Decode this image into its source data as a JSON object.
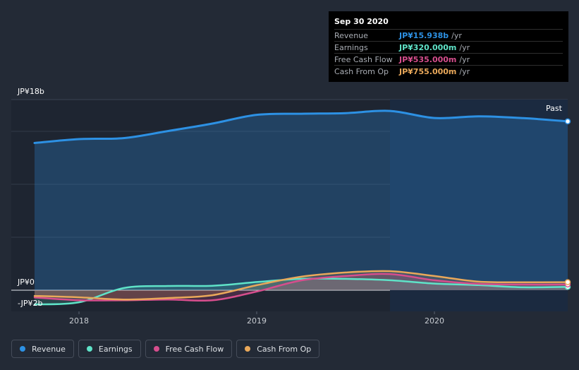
{
  "tooltip": {
    "date": "Sep 30 2020",
    "rows": [
      {
        "label": "Revenue",
        "value": "JP¥15.938b",
        "unit": "/yr",
        "color": "#2d91e4"
      },
      {
        "label": "Earnings",
        "value": "JP¥320.000m",
        "unit": "/yr",
        "color": "#5fe3c8"
      },
      {
        "label": "Free Cash Flow",
        "value": "JP¥535.000m",
        "unit": "/yr",
        "color": "#d64e8d"
      },
      {
        "label": "Cash From Op",
        "value": "JP¥755.000m",
        "unit": "/yr",
        "color": "#e9a85a"
      }
    ]
  },
  "y_axis": {
    "top_label": "JP¥18b",
    "zero_label": "JP¥0",
    "bottom_label": "-JP¥2b"
  },
  "past_label": "Past",
  "legend": [
    {
      "label": "Revenue",
      "color": "#2d91e4"
    },
    {
      "label": "Earnings",
      "color": "#5fe3c8"
    },
    {
      "label": "Free Cash Flow",
      "color": "#d64e8d"
    },
    {
      "label": "Cash From Op",
      "color": "#e9a85a"
    }
  ],
  "chart_data": {
    "type": "line",
    "title": "",
    "xlabel": "",
    "ylabel": "",
    "ylim": [
      -2,
      18
    ],
    "xlim": [
      2017.73,
      2020.75
    ],
    "y_unit": "JP¥ billions",
    "x_ticks": [
      {
        "value": 2018.0,
        "label": "2018"
      },
      {
        "value": 2019.0,
        "label": "2019"
      },
      {
        "value": 2020.0,
        "label": "2020"
      }
    ],
    "shaded_region_start": 2019.75,
    "series": [
      {
        "name": "Revenue",
        "color": "#2d91e4",
        "points": [
          [
            2017.75,
            13.9
          ],
          [
            2018.0,
            14.27
          ],
          [
            2018.25,
            14.36
          ],
          [
            2018.5,
            15.03
          ],
          [
            2018.75,
            15.73
          ],
          [
            2019.0,
            16.56
          ],
          [
            2019.25,
            16.66
          ],
          [
            2019.5,
            16.72
          ],
          [
            2019.75,
            16.93
          ],
          [
            2020.0,
            16.26
          ],
          [
            2020.25,
            16.42
          ],
          [
            2020.5,
            16.25
          ],
          [
            2020.75,
            15.94
          ]
        ]
      },
      {
        "name": "Earnings",
        "color": "#5fe3c8",
        "points": [
          [
            2017.75,
            -1.34
          ],
          [
            2018.0,
            -1.14
          ],
          [
            2018.25,
            0.2
          ],
          [
            2018.5,
            0.4
          ],
          [
            2018.75,
            0.42
          ],
          [
            2019.0,
            0.77
          ],
          [
            2019.25,
            1.07
          ],
          [
            2019.5,
            1.07
          ],
          [
            2019.75,
            0.94
          ],
          [
            2020.0,
            0.63
          ],
          [
            2020.25,
            0.48
          ],
          [
            2020.5,
            0.27
          ],
          [
            2020.75,
            0.32
          ]
        ]
      },
      {
        "name": "Free Cash Flow",
        "color": "#d64e8d",
        "points": [
          [
            2017.75,
            -0.68
          ],
          [
            2018.0,
            -0.95
          ],
          [
            2018.25,
            -0.95
          ],
          [
            2018.5,
            -0.88
          ],
          [
            2018.75,
            -0.95
          ],
          [
            2019.0,
            -0.13
          ],
          [
            2019.25,
            0.93
          ],
          [
            2019.5,
            1.34
          ],
          [
            2019.75,
            1.53
          ],
          [
            2020.0,
            0.94
          ],
          [
            2020.25,
            0.6
          ],
          [
            2020.5,
            0.54
          ],
          [
            2020.75,
            0.54
          ]
        ]
      },
      {
        "name": "Cash From Op",
        "color": "#e9a85a",
        "points": [
          [
            2017.75,
            -0.54
          ],
          [
            2018.0,
            -0.67
          ],
          [
            2018.25,
            -0.88
          ],
          [
            2018.5,
            -0.74
          ],
          [
            2018.75,
            -0.47
          ],
          [
            2019.0,
            0.47
          ],
          [
            2019.25,
            1.27
          ],
          [
            2019.5,
            1.67
          ],
          [
            2019.75,
            1.8
          ],
          [
            2020.0,
            1.34
          ],
          [
            2020.25,
            0.81
          ],
          [
            2020.5,
            0.75
          ],
          [
            2020.75,
            0.76
          ]
        ]
      }
    ]
  }
}
